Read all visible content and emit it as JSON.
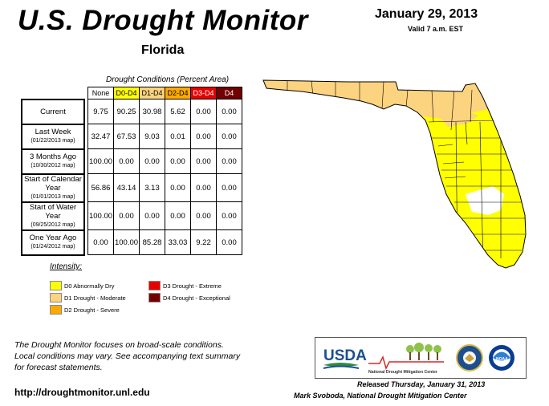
{
  "header": {
    "title": "U.S. Drought Monitor",
    "region": "Florida",
    "date": "January 29, 2013",
    "valid": "Valid 7 a.m. EST"
  },
  "table": {
    "caption": "Drought Conditions (Percent Area)",
    "columns": [
      "None",
      "D0-D4",
      "D1-D4",
      "D2-D4",
      "D3-D4",
      "D4"
    ],
    "column_colors": [
      "#ffffff",
      "#ffff00",
      "#fcd37f",
      "#ffaa00",
      "#e60000",
      "#730000"
    ],
    "rows": [
      {
        "label": "Current",
        "sub": "",
        "values": [
          "9.75",
          "90.25",
          "30.98",
          "5.62",
          "0.00",
          "0.00"
        ]
      },
      {
        "label": "Last Week",
        "sub": "(01/22/2013 map)",
        "values": [
          "32.47",
          "67.53",
          "9.03",
          "0.01",
          "0.00",
          "0.00"
        ]
      },
      {
        "label": "3 Months Ago",
        "sub": "(10/30/2012 map)",
        "values": [
          "100.00",
          "0.00",
          "0.00",
          "0.00",
          "0.00",
          "0.00"
        ]
      },
      {
        "label": "Start of Calendar Year",
        "sub": "(01/01/2013 map)",
        "values": [
          "56.86",
          "43.14",
          "3.13",
          "0.00",
          "0.00",
          "0.00"
        ]
      },
      {
        "label": "Start of Water Year",
        "sub": "(09/25/2012 map)",
        "values": [
          "100.00",
          "0.00",
          "0.00",
          "0.00",
          "0.00",
          "0.00"
        ]
      },
      {
        "label": "One Year Ago",
        "sub": "(01/24/2012 map)",
        "values": [
          "0.00",
          "100.00",
          "85.28",
          "33.03",
          "9.22",
          "0.00"
        ]
      }
    ]
  },
  "legend": {
    "title": "Intensity:",
    "items": [
      {
        "label": "D0 Abnormally Dry",
        "color": "#ffff00"
      },
      {
        "label": "D1 Drought - Moderate",
        "color": "#fcd37f"
      },
      {
        "label": "D2 Drought - Severe",
        "color": "#ffaa00"
      },
      {
        "label": "D3 Drought - Extreme",
        "color": "#e60000"
      },
      {
        "label": "D4 Drought - Exceptional",
        "color": "#730000"
      }
    ]
  },
  "note": [
    "The Drought Monitor focuses on broad-scale conditions.",
    "Local conditions may vary. See accompanying text summary",
    "for forecast statements."
  ],
  "url": "http://droughtmonitor.unl.edu",
  "logos": {
    "usda": "USDA",
    "ndmc": "National Drought Mitigation Center",
    "icons": [
      "usda-logo-icon",
      "ndmc-logo-icon",
      "commerce-seal-icon",
      "noaa-logo-icon"
    ]
  },
  "footer": {
    "released": "Released Thursday, January 31, 2013",
    "author": "Mark Svoboda, National Drought Mitigation Center"
  },
  "map_colors": {
    "none": "#ffffff",
    "d0": "#ffff00",
    "d1": "#fcd37f",
    "county_line": "#000000"
  }
}
